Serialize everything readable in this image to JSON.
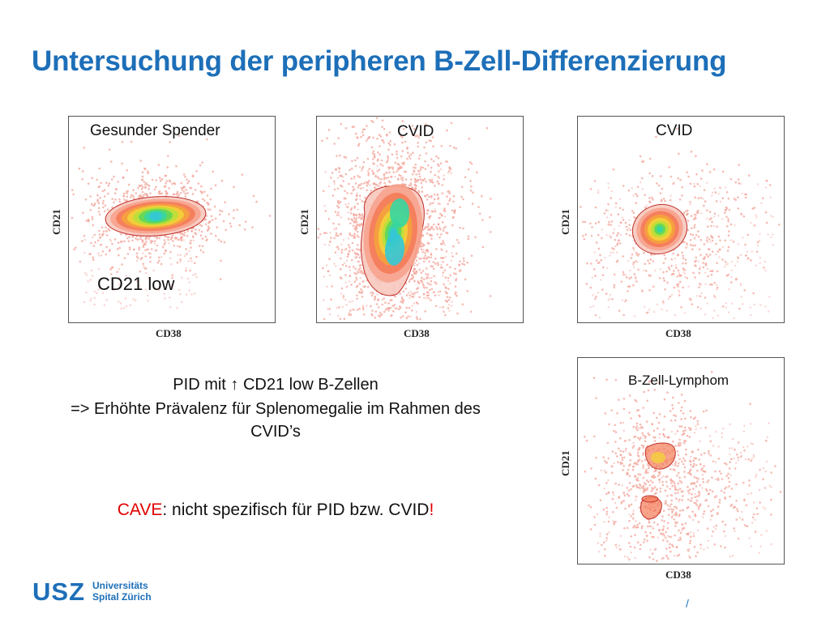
{
  "title": "Untersuchung der peripheren B-Zell-Differenzierung",
  "plots": [
    {
      "label": "Gesunder Spender",
      "xlabel": "CD38",
      "ylabel": "CD21"
    },
    {
      "label": "CVID",
      "xlabel": "CD38",
      "ylabel": "CD21"
    },
    {
      "label": "CVID",
      "xlabel": "CD38",
      "ylabel": "CD21"
    },
    {
      "label": "B-Zell-Lymphom",
      "xlabel": "CD38",
      "ylabel": "CD21"
    }
  ],
  "annotation_cd21low": "CD21 low",
  "body": {
    "line1": "PID mit ↑ CD21 low B-Zellen",
    "line2": "=> Erhöhte Prävalenz für Splenomegalie im Rahmen des",
    "line3": "CVID’s"
  },
  "cave": {
    "prefix": "CAVE",
    "rest": ": nicht spezifisch für PID bzw. CVID",
    "suffix": "!"
  },
  "logo": {
    "mark": "USZ",
    "line1": "Universitäts",
    "line2": "Spital Zürich"
  },
  "footer_mark": "/",
  "colors": {
    "brand": "#1d6fb8",
    "cave": "#e00000",
    "dots": "#f3a49a"
  }
}
